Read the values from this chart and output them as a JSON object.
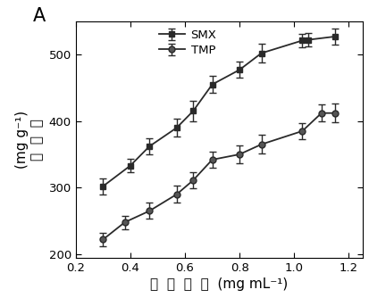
{
  "smx_x": [
    0.3,
    0.4,
    0.47,
    0.57,
    0.63,
    0.7,
    0.8,
    0.88,
    1.03,
    1.05,
    1.15
  ],
  "smx_y": [
    302,
    333,
    362,
    390,
    415,
    455,
    477,
    502,
    521,
    522,
    527
  ],
  "smx_yerr": [
    12,
    10,
    12,
    13,
    15,
    13,
    12,
    14,
    10,
    10,
    12
  ],
  "tmp_x": [
    0.3,
    0.38,
    0.47,
    0.57,
    0.63,
    0.7,
    0.8,
    0.88,
    1.03,
    1.1,
    1.15
  ],
  "tmp_y": [
    222,
    248,
    265,
    290,
    311,
    342,
    350,
    365,
    385,
    412,
    412
  ],
  "tmp_yerr": [
    10,
    10,
    12,
    13,
    12,
    12,
    14,
    14,
    12,
    13,
    14
  ],
  "xlim": [
    0.2,
    1.25
  ],
  "ylim": [
    195,
    550
  ],
  "xticks": [
    0.2,
    0.4,
    0.6,
    0.8,
    1.0,
    1.2
  ],
  "yticks": [
    200,
    300,
    400,
    500
  ],
  "xlabel_chinese": "平  衡  浓  度",
  "xlabel_unit": "(mg mL⁻¹)",
  "ylabel_unit": "(mg g⁻¹)",
  "ylabel_chinese_chars": [
    "吸",
    "附",
    "量"
  ],
  "smx_label": "SMX",
  "tmp_label": "TMP",
  "corner_label": "A",
  "line_color": "#2a2a2a",
  "smx_marker": "s",
  "tmp_marker": "o",
  "marker_size": 5,
  "linewidth": 1.3,
  "capsize": 3,
  "elinewidth": 1.0
}
